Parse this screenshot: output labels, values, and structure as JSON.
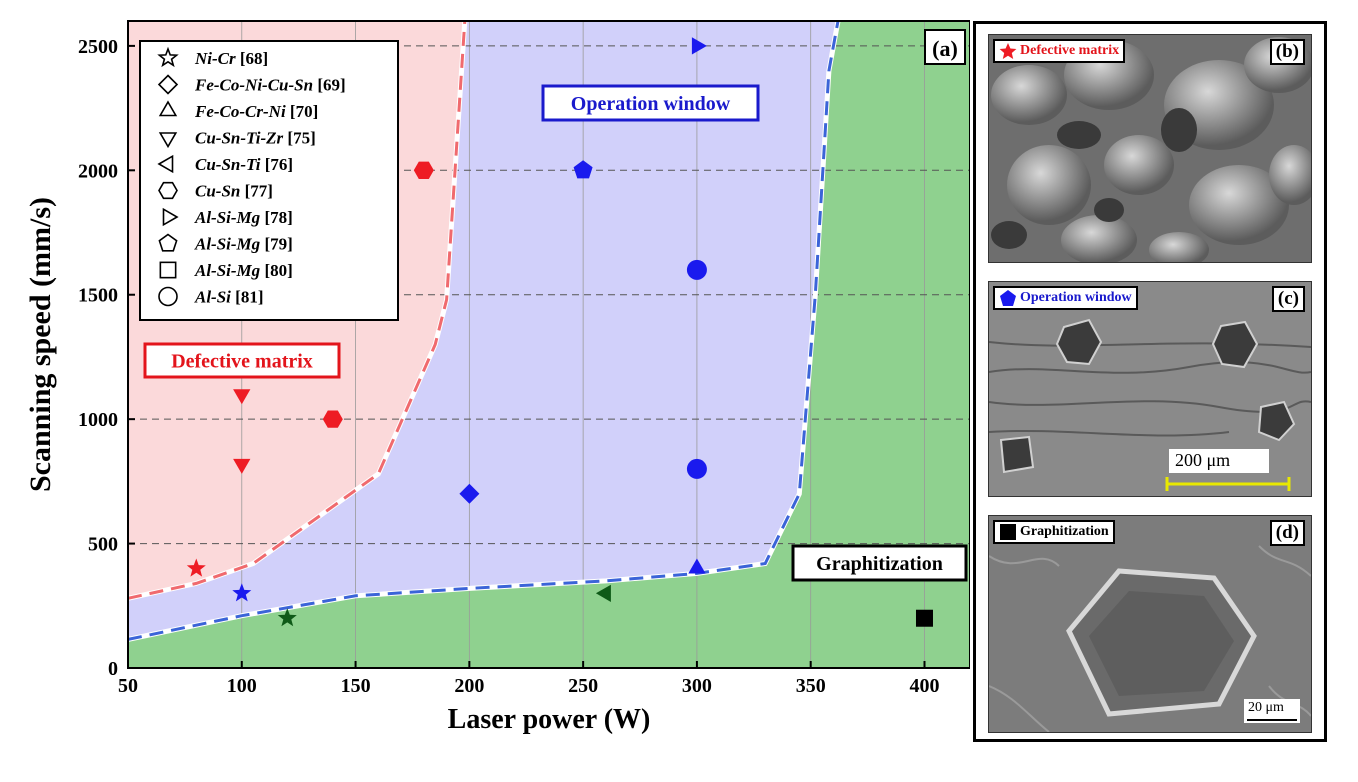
{
  "chart_data": {
    "type": "scatter",
    "panel_label": "(a)",
    "xlabel": "Laser power (W)",
    "ylabel": "Scanning speed (mm/s)",
    "xlim": [
      50,
      420
    ],
    "ylim": [
      0,
      2600
    ],
    "x_ticks": [
      50,
      100,
      150,
      200,
      250,
      300,
      350,
      400
    ],
    "y_ticks": [
      0,
      500,
      1000,
      1500,
      2000,
      2500
    ],
    "grid": true,
    "legend_position": "top-left",
    "legend": [
      {
        "marker": "star",
        "alloy": "Ni-Cr",
        "ref": "[68]"
      },
      {
        "marker": "diamond",
        "alloy": "Fe-Co-Ni-Cu-Sn",
        "ref": "[69]"
      },
      {
        "marker": "triangle-up",
        "alloy": "Fe-Co-Cr-Ni",
        "ref": "[70]"
      },
      {
        "marker": "triangle-down",
        "alloy": "Cu-Sn-Ti-Zr",
        "ref": "[75]"
      },
      {
        "marker": "triangle-left",
        "alloy": "Cu-Sn-Ti",
        "ref": "[76]"
      },
      {
        "marker": "hexagon",
        "alloy": "Cu-Sn",
        "ref": "[77]"
      },
      {
        "marker": "triangle-right",
        "alloy": "Al-Si-Mg",
        "ref": "[78]"
      },
      {
        "marker": "pentagon",
        "alloy": "Al-Si-Mg",
        "ref": "[79]"
      },
      {
        "marker": "square",
        "alloy": "Al-Si-Mg",
        "ref": "[80]"
      },
      {
        "marker": "circle",
        "alloy": "Al-Si",
        "ref": "[81]"
      }
    ],
    "regions": [
      {
        "label": "Defective matrix",
        "color": "#fbd9da",
        "text_color": "#e3141b"
      },
      {
        "label": "Operation window",
        "color": "#d1d0fa",
        "text_color": "#1a1acc"
      },
      {
        "label": "Graphitization",
        "color": "#8fd18f",
        "text_color": "#000000"
      }
    ],
    "boundary_upper": [
      [
        50,
        280
      ],
      [
        80,
        340
      ],
      [
        105,
        420
      ],
      [
        160,
        780
      ],
      [
        185,
        1300
      ],
      [
        190,
        1480
      ],
      [
        198,
        2600
      ]
    ],
    "boundary_lower": [
      [
        50,
        115
      ],
      [
        100,
        210
      ],
      [
        150,
        290
      ],
      [
        200,
        320
      ],
      [
        260,
        350
      ],
      [
        300,
        380
      ],
      [
        330,
        420
      ],
      [
        345,
        700
      ],
      [
        352,
        1500
      ],
      [
        358,
        2400
      ],
      [
        362,
        2600
      ]
    ],
    "points": [
      {
        "x": 80,
        "y": 400,
        "marker": "star",
        "color": "#ee1c24"
      },
      {
        "x": 100,
        "y": 300,
        "marker": "star",
        "color": "#1a1aee"
      },
      {
        "x": 120,
        "y": 200,
        "marker": "star",
        "color": "#0f5a18"
      },
      {
        "x": 100,
        "y": 1100,
        "marker": "triangle-down",
        "color": "#ee1c24"
      },
      {
        "x": 100,
        "y": 820,
        "marker": "triangle-down",
        "color": "#ee1c24"
      },
      {
        "x": 140,
        "y": 1000,
        "marker": "hexagon",
        "color": "#ee1c24"
      },
      {
        "x": 180,
        "y": 2000,
        "marker": "hexagon",
        "color": "#ee1c24"
      },
      {
        "x": 200,
        "y": 700,
        "marker": "diamond",
        "color": "#1a1aee"
      },
      {
        "x": 250,
        "y": 2000,
        "marker": "pentagon",
        "color": "#1a1aee"
      },
      {
        "x": 300,
        "y": 2500,
        "marker": "triangle-right",
        "color": "#1a1aee"
      },
      {
        "x": 300,
        "y": 1600,
        "marker": "circle",
        "color": "#1a1aee"
      },
      {
        "x": 300,
        "y": 800,
        "marker": "circle",
        "color": "#1a1aee"
      },
      {
        "x": 300,
        "y": 400,
        "marker": "triangle-up",
        "color": "#1a1aee"
      },
      {
        "x": 260,
        "y": 300,
        "marker": "triangle-left",
        "color": "#0f5a18"
      },
      {
        "x": 400,
        "y": 200,
        "marker": "square",
        "color": "#000000"
      }
    ]
  },
  "sem_panels": [
    {
      "label": "Defective matrix",
      "marker": "star",
      "marker_color": "#ee1c24",
      "label_color": "#e3141b",
      "letter": "(b)"
    },
    {
      "label": "Operation window",
      "marker": "pentagon",
      "marker_color": "#1a1aee",
      "label_color": "#1a1acc",
      "letter": "(c)",
      "scale_bar": "200 μm"
    },
    {
      "label": "Graphitization",
      "marker": "square",
      "marker_color": "#000000",
      "label_color": "#000000",
      "letter": "(d)",
      "scale_bar": "20 μm"
    }
  ]
}
